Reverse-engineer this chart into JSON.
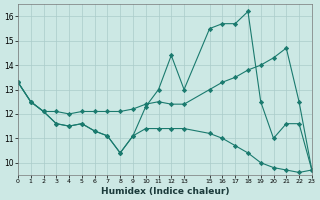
{
  "xlabel": "Humidex (Indice chaleur)",
  "x": [
    0,
    1,
    2,
    3,
    4,
    5,
    6,
    7,
    8,
    9,
    10,
    11,
    12,
    13,
    15,
    16,
    17,
    18,
    19,
    20,
    21,
    22,
    23
  ],
  "line_max": [
    13.3,
    12.5,
    12.1,
    11.6,
    11.5,
    11.6,
    11.3,
    11.1,
    10.4,
    11.1,
    12.3,
    13.0,
    14.4,
    13.0,
    15.5,
    15.7,
    15.7,
    16.2,
    12.5,
    11.0,
    11.6,
    11.6,
    9.7
  ],
  "line_mean": [
    13.3,
    12.5,
    12.1,
    12.1,
    12.0,
    12.1,
    12.1,
    12.1,
    12.1,
    12.2,
    12.4,
    12.5,
    12.4,
    12.4,
    13.0,
    13.3,
    13.5,
    13.8,
    14.0,
    14.3,
    14.7,
    12.5,
    9.7
  ],
  "line_min": [
    13.3,
    12.5,
    12.1,
    11.6,
    11.5,
    11.6,
    11.3,
    11.1,
    10.4,
    11.1,
    11.4,
    11.4,
    11.4,
    11.4,
    11.2,
    11.0,
    10.7,
    10.4,
    10.0,
    9.8,
    9.7,
    9.6,
    9.7
  ],
  "line_color": "#1a7a6e",
  "bg_color": "#cce8e4",
  "grid_color": "#aaccca",
  "xlim": [
    0,
    23
  ],
  "ylim": [
    9.5,
    16.5
  ],
  "yticks": [
    10,
    11,
    12,
    13,
    14,
    15,
    16
  ],
  "xticks": [
    0,
    1,
    2,
    3,
    4,
    5,
    6,
    7,
    8,
    9,
    10,
    11,
    12,
    13,
    15,
    16,
    17,
    18,
    19,
    20,
    21,
    22,
    23
  ]
}
